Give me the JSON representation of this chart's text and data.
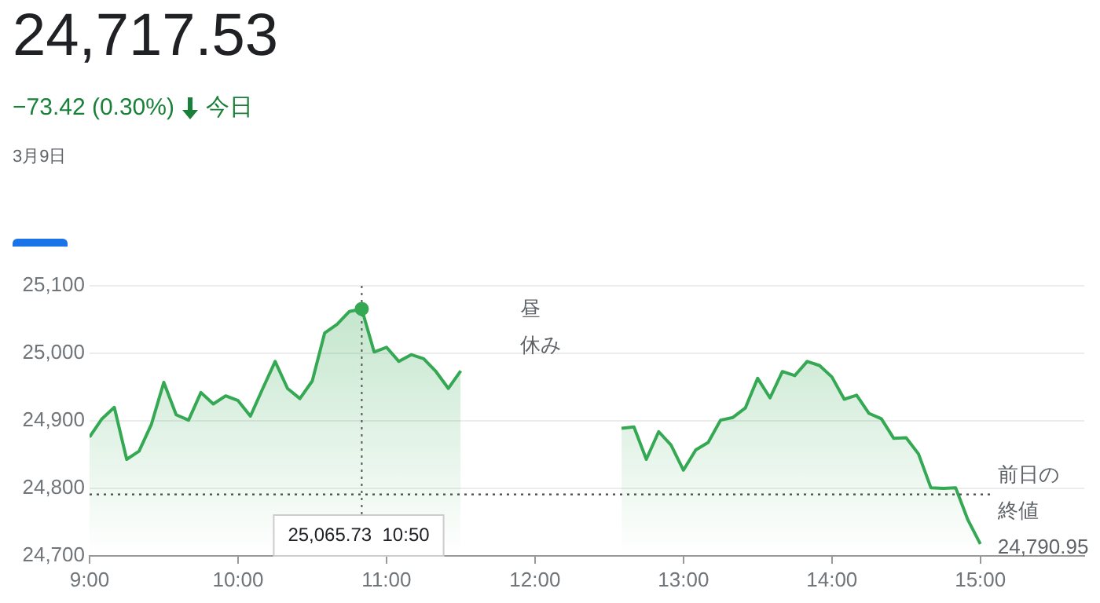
{
  "chart_data": {
    "type": "area",
    "title": "24,717.53",
    "subtitle": "−73.42 (0.30%)",
    "annotations": [
      "今日",
      "3月9日",
      "昼休み",
      "25,065.73  10:50",
      "24,790.95"
    ],
    "series": [
      {
        "color": "#34a853",
        "x": [
          9,
          9.0833,
          9.1667,
          9.25,
          9.3333,
          9.4167,
          9.5,
          9.5833,
          9.6667,
          9.75,
          9.8333,
          9.9167,
          10,
          10.0833,
          10.1667,
          10.25,
          10.3333,
          10.4167,
          10.5,
          10.5833,
          10.6667,
          10.75,
          10.8333,
          10.9167,
          11,
          11.0833,
          11.1667,
          11.25,
          11.3333,
          11.4167,
          11.5
        ],
        "values": [
          24876,
          24903,
          24920,
          24843,
          24855,
          24895,
          24957,
          24909,
          24901,
          24942,
          24925,
          24937,
          24930,
          24907,
          24948,
          24988,
          24948,
          24933,
          24959,
          25030,
          25043,
          25062,
          25065.73,
          25002,
          25009,
          24988,
          24998,
          24992,
          24973,
          24948,
          24974
        ]
      },
      {
        "color": "#34a853",
        "x": [
          12.5833,
          12.6667,
          12.75,
          12.8333,
          12.9167,
          13,
          13.0833,
          13.1667,
          13.25,
          13.3333,
          13.4167,
          13.5,
          13.5833,
          13.6667,
          13.75,
          13.8333,
          13.9167,
          14,
          14.0833,
          14.1667,
          14.25,
          14.3333,
          14.4167,
          14.5,
          14.5833,
          14.6667,
          14.75,
          14.8333,
          14.9167,
          15
        ],
        "values": [
          24889,
          24891,
          24843,
          24884,
          24864,
          24827,
          24857,
          24868,
          24901,
          24905,
          24919,
          24963,
          24934,
          24973,
          24967,
          24988,
          24982,
          24965,
          24932,
          24938,
          24911,
          24903,
          24874,
          24875,
          24851,
          24801,
          24800,
          24801,
          24753,
          24717.53
        ]
      }
    ],
    "xlim": [
      9,
      15.7
    ],
    "ylim": [
      24700,
      25100
    ],
    "xticks": [
      {
        "value": 9,
        "label": "9:00"
      },
      {
        "value": 10,
        "label": "10:00"
      },
      {
        "value": 11,
        "label": "11:00"
      },
      {
        "value": 12,
        "label": "12:00"
      },
      {
        "value": 13,
        "label": "13:00"
      },
      {
        "value": 14,
        "label": "14:00"
      },
      {
        "value": 15,
        "label": "15:00"
      }
    ],
    "yticks": [
      {
        "value": 24700,
        "label": "24,700"
      },
      {
        "value": 24800,
        "label": "24,800"
      },
      {
        "value": 24900,
        "label": "24,900"
      },
      {
        "value": 25000,
        "label": "25,000"
      },
      {
        "value": 25100,
        "label": "25,100"
      }
    ],
    "ref_lines": [
      {
        "axis": "y",
        "value": 24790.95,
        "label": "前日の終値",
        "line_style": "dotted"
      },
      {
        "axis": "x",
        "value": 10.8333,
        "line_style": "dotted"
      }
    ],
    "grid": "y",
    "legend": false,
    "marker": "none",
    "line_style": "solid"
  }
}
